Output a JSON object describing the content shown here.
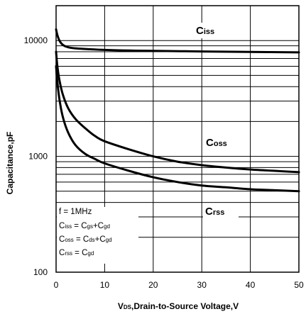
{
  "chart_data": {
    "type": "line",
    "title": "",
    "xlabel": {
      "pre": "V",
      "sub": "DS",
      "post": ",Drain-to-Source Voltage,V"
    },
    "ylabel": "Capacitance,pF",
    "x_scale": "linear",
    "y_scale": "log",
    "xlim": [
      0,
      50
    ],
    "ylim": [
      100,
      20000
    ],
    "x_ticks": [
      "0",
      "10",
      "20",
      "30",
      "40",
      "50"
    ],
    "y_ticks": [
      {
        "value": 100,
        "label": "100"
      },
      {
        "value": 1000,
        "label": "1000"
      },
      {
        "value": 10000,
        "label": "10000"
      }
    ],
    "grid": true,
    "series": [
      {
        "name": {
          "main": "C",
          "sub": "iss"
        },
        "x": [
          0,
          0.3,
          0.8,
          1.5,
          2.5,
          4,
          6,
          10,
          15,
          20,
          30,
          40,
          50
        ],
        "y": [
          12500,
          11000,
          9800,
          9100,
          8750,
          8550,
          8450,
          8300,
          8200,
          8150,
          8050,
          7980,
          7900
        ]
      },
      {
        "name": {
          "main": "C",
          "sub": "oss"
        },
        "x": [
          0,
          0.3,
          0.8,
          1.5,
          2.5,
          4,
          6,
          8,
          10,
          15,
          20,
          25,
          30,
          35,
          40,
          45,
          50
        ],
        "y": [
          8000,
          5800,
          4300,
          3300,
          2600,
          2100,
          1750,
          1500,
          1350,
          1150,
          1000,
          900,
          840,
          800,
          770,
          750,
          730
        ]
      },
      {
        "name": {
          "main": "C",
          "sub": "rss"
        },
        "x": [
          0,
          0.3,
          0.8,
          1.5,
          2.5,
          4,
          6,
          8,
          10,
          15,
          20,
          25,
          30,
          35,
          40,
          45,
          50
        ],
        "y": [
          6000,
          4200,
          2900,
          2100,
          1600,
          1250,
          1050,
          950,
          870,
          750,
          660,
          600,
          560,
          540,
          520,
          510,
          500
        ]
      }
    ],
    "annotation": [
      {
        "parts": [
          {
            "t": "f = 1MHz",
            "sub": false
          }
        ]
      },
      {
        "parts": [
          {
            "t": "C",
            "sub": false
          },
          {
            "t": "iss",
            "sub": true
          },
          {
            "t": " = C",
            "sub": false
          },
          {
            "t": "gs",
            "sub": true
          },
          {
            "t": "+C",
            "sub": false
          },
          {
            "t": "gd",
            "sub": true
          }
        ]
      },
      {
        "parts": [
          {
            "t": "C",
            "sub": false
          },
          {
            "t": "oss",
            "sub": true
          },
          {
            "t": " = C",
            "sub": false
          },
          {
            "t": "ds",
            "sub": true
          },
          {
            "t": "+C",
            "sub": false
          },
          {
            "t": "gd",
            "sub": true
          }
        ]
      },
      {
        "parts": [
          {
            "t": "C",
            "sub": false
          },
          {
            "t": "rss",
            "sub": true
          },
          {
            "t": " = C",
            "sub": false
          },
          {
            "t": "gd",
            "sub": true
          }
        ]
      }
    ]
  }
}
